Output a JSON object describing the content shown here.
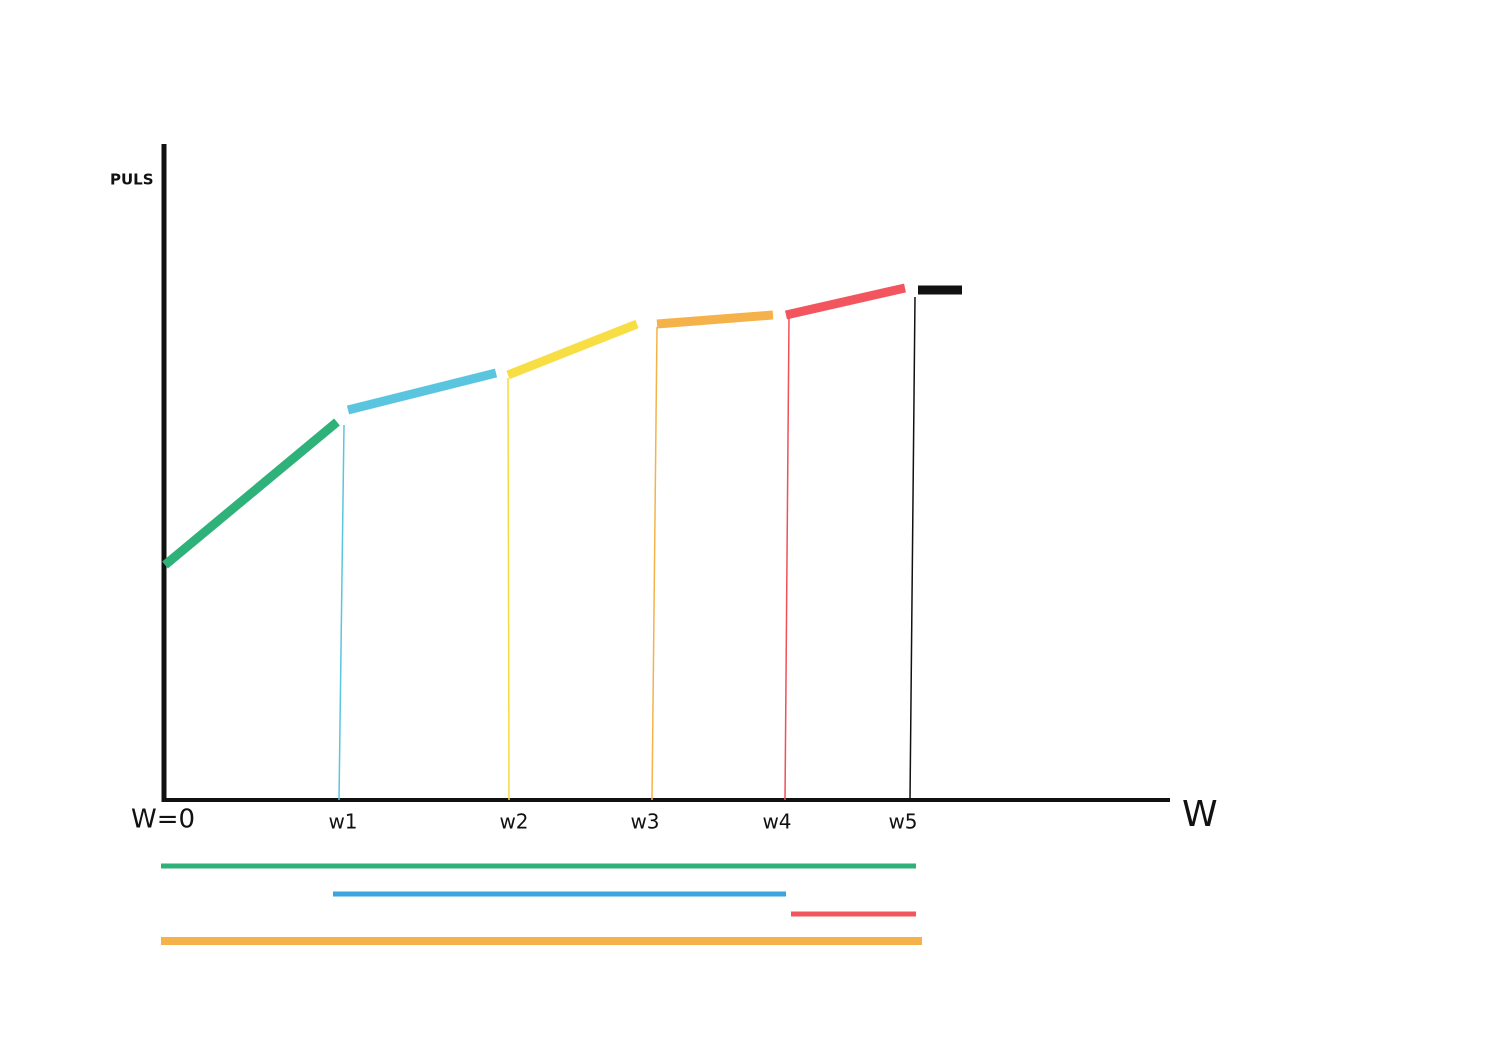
{
  "axis": {
    "y_label": "PULS",
    "x_label": "W",
    "origin_label": "W=0"
  },
  "ticks": [
    "w1",
    "w2",
    "w3",
    "w4",
    "w5"
  ]
}
